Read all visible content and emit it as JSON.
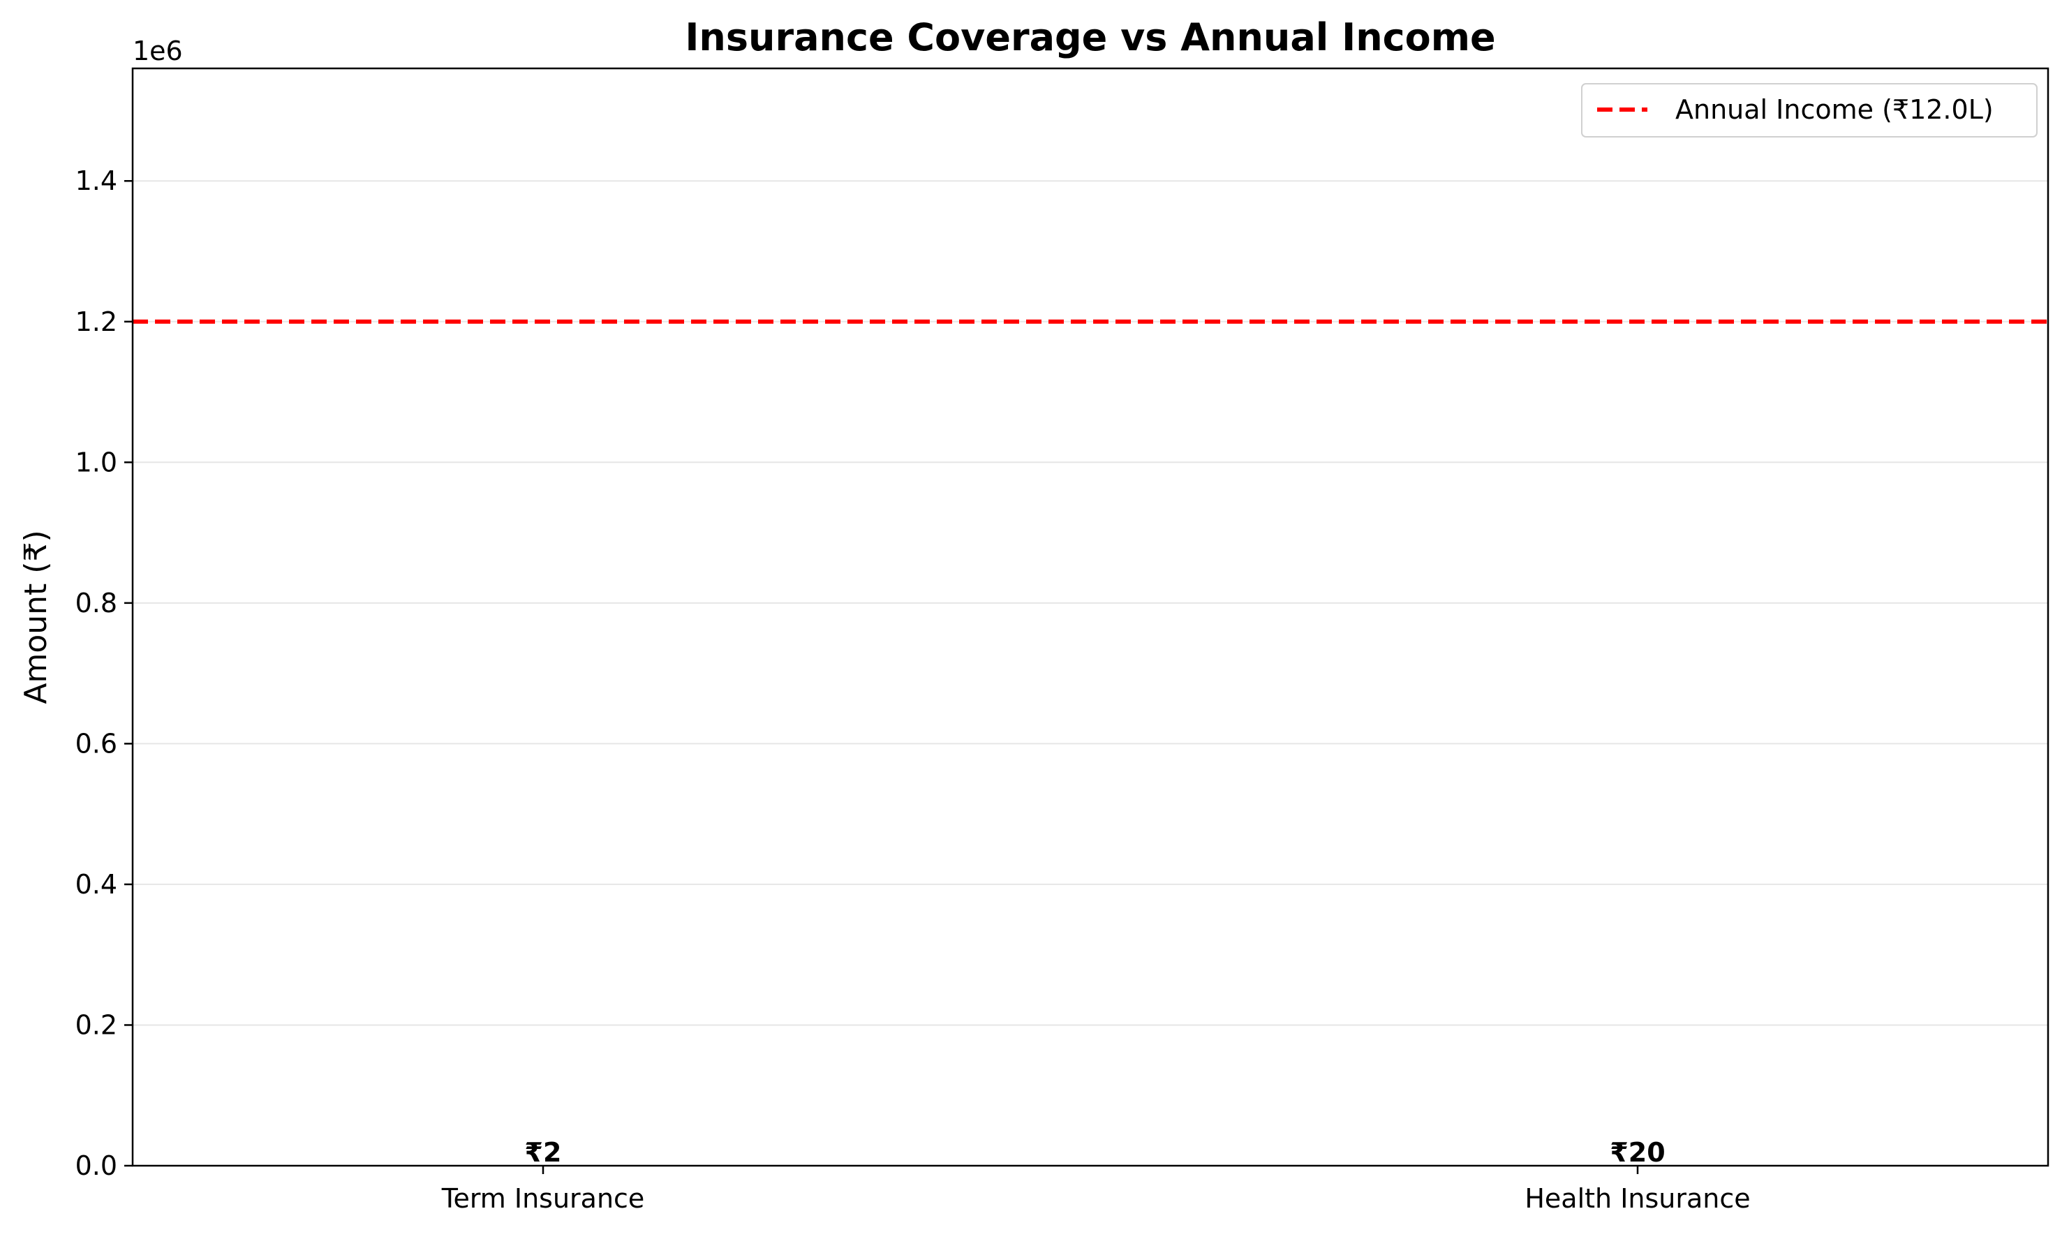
{
  "chart_data": {
    "type": "bar",
    "title": "Insurance Coverage vs Annual Income",
    "xlabel": "",
    "ylabel": "Amount (₹)",
    "y_offset_label": "1e6",
    "categories": [
      "Term Insurance",
      "Health Insurance"
    ],
    "values": [
      2,
      20
    ],
    "data_labels": [
      "₹2",
      "₹20"
    ],
    "ylim": [
      0,
      1560000
    ],
    "y_ticks": [
      0,
      200000,
      400000,
      600000,
      800000,
      1000000,
      1200000,
      1400000
    ],
    "y_tick_labels": [
      "0.0",
      "0.2",
      "0.4",
      "0.6",
      "0.8",
      "1.0",
      "1.2",
      "1.4"
    ],
    "grid": true,
    "reference_line": {
      "value": 1200000,
      "label": "Annual Income (₹12.0L)",
      "color": "#ff0000",
      "style": "dashed"
    },
    "legend_placement": "top-right"
  }
}
